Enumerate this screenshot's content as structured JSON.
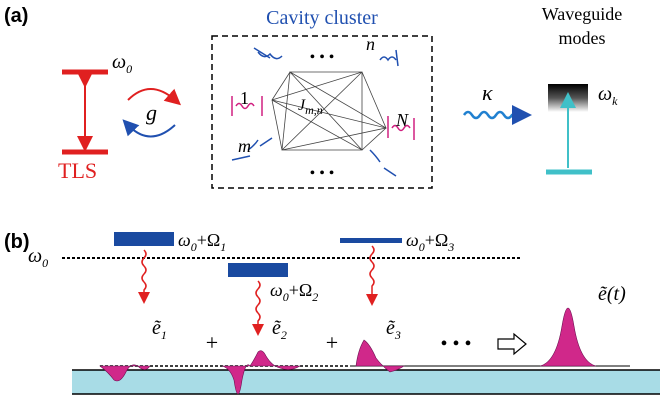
{
  "panel_a": {
    "label": "(a)",
    "tls": {
      "level": {
        "main": "ω",
        "sub": "0"
      },
      "name": "TLS",
      "coupling": "g"
    },
    "cluster": {
      "title": "Cavity cluster",
      "dots_top": "• • •",
      "dots_bottom": "• • •",
      "cavities": [
        "1",
        "n",
        "N",
        "m"
      ],
      "coupling": {
        "main": "J",
        "sub": "m,n"
      }
    },
    "decay": "κ",
    "waveguide": {
      "title_line1": "Waveguide",
      "title_line2": "modes",
      "mode": {
        "main": "ω",
        "sub": "k"
      }
    }
  },
  "panel_b": {
    "label": "(b)",
    "baseline": {
      "main": "ω",
      "sub": "0"
    },
    "levels": [
      {
        "main": "ω",
        "sub": "0",
        "plus": "+Ω",
        "sub2": "1"
      },
      {
        "main": "ω",
        "sub": "0",
        "plus": "+Ω",
        "sub2": "2"
      },
      {
        "main": "ω",
        "sub": "0",
        "plus": "+Ω",
        "sub2": "3"
      }
    ],
    "pulses": [
      {
        "main": "ẽ",
        "sub": "1"
      },
      {
        "main": "ẽ",
        "sub": "2"
      },
      {
        "main": "ẽ",
        "sub": "3"
      }
    ],
    "plus_signs": [
      "+",
      "+"
    ],
    "dots": "• • •",
    "total": "ẽ(t)"
  }
}
